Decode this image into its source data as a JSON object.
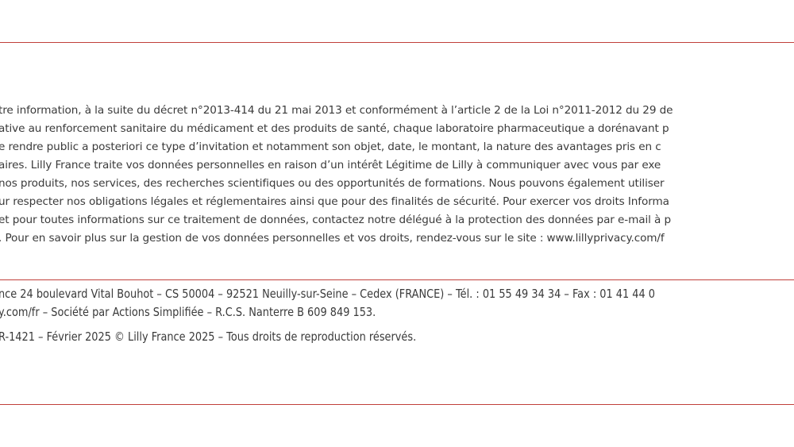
{
  "colors": {
    "rule": "#c0403a",
    "text": "#3a3a3a"
  },
  "body_lines": [
    "tre information, à la suite du décret n°2013-414 du 21 mai 2013 et conformément à l’article 2 de la Loi n°2011-2012 du 29 de",
    "ative au renforcement sanitaire du médicament et des produits de santé, chaque laboratoire pharmaceutique a dorénavant p",
    "e rendre public a posteriori ce type d’invitation et notamment son objet, date, le montant, la nature des avantages pris en c",
    "aires. Lilly France traite vos données personnelles en raison d’un intérêt Légitime de Lilly à communiquer avec vous par exe",
    " nos produits, nos services, des recherches scientifiques ou des opportunités de formations. Nous pouvons également utiliser ",
    "ur respecter nos obligations légales et réglementaires ainsi que pour des finalités de sécurité. Pour exercer vos droits Informa",
    " et pour toutes informations sur ce traitement de données, contactez notre délégué à la protection des données par e-mail à p",
    ". Pour en savoir plus sur la gestion de vos données personnelles et vos droits, rendez-vous sur le site : www.lillyprivacy.com/f"
  ],
  "footer_lines": [
    "nce 24 boulevard Vital Bouhot – CS 50004 – 92521 Neuilly-sur-Seine – Cedex (FRANCE) – Tél. : 01 55 49 34 34 – Fax : 01 41 44 0",
    "y.com/fr – Société par Actions Simplifiée – R.C.S. Nanterre B 609 849 153.",
    "R-1421 – Février 2025 © Lilly France 2025 – Tous droits de reproduction réservés."
  ]
}
